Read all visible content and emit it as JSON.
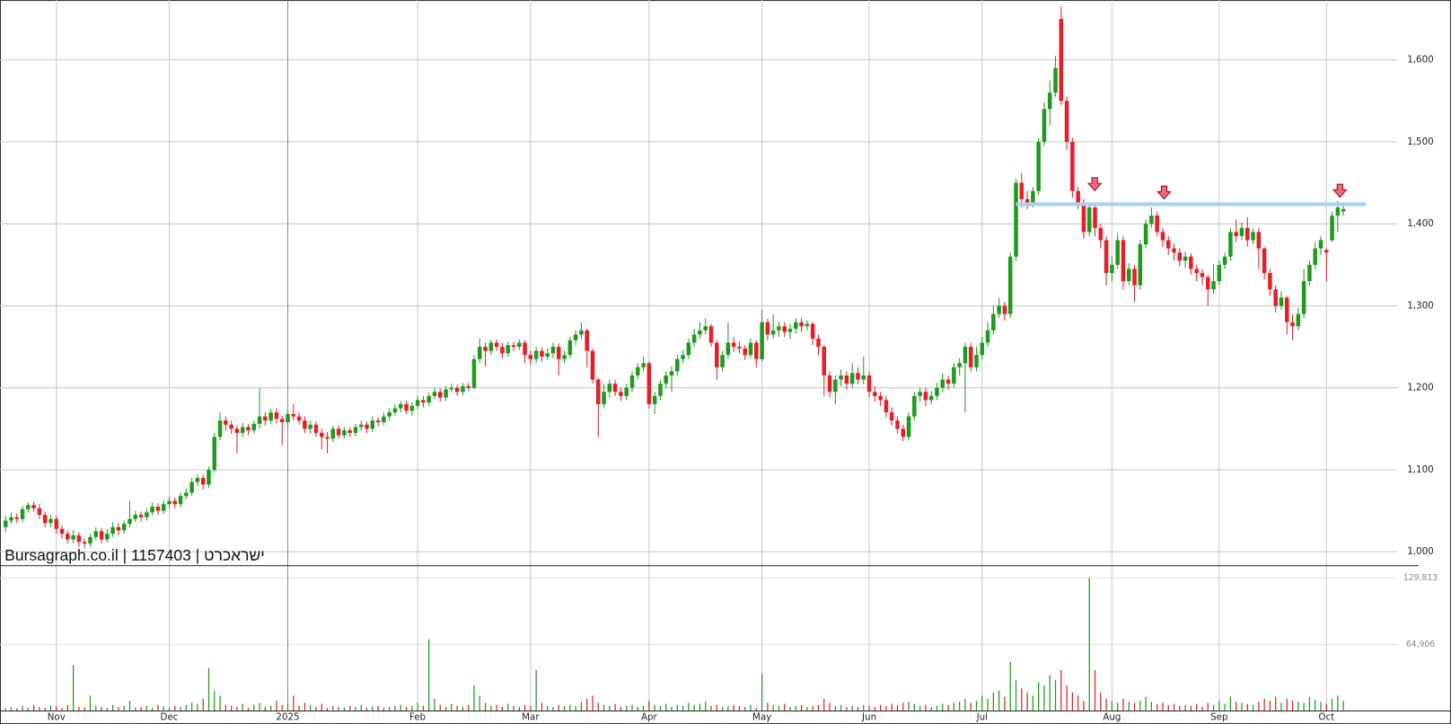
{
  "chart_data": {
    "type": "candlestick",
    "watermark": "Bursagraph.co.il | 1157403 | ישראכרט",
    "up_color": "#1f9a1f",
    "down_color": "#e61e28",
    "grid": true,
    "resistance_line": 1424,
    "resistance_color": "#a8d0f0",
    "ylim": [
      983,
      1673
    ],
    "yticks": [
      {
        "value": 1000,
        "label": "1,000"
      },
      {
        "value": 1100,
        "label": "1,100"
      },
      {
        "value": 1200,
        "label": "1,200"
      },
      {
        "value": 1300,
        "label": "1,300"
      },
      {
        "value": 1400,
        "label": "1,400"
      },
      {
        "value": 1500,
        "label": "1,500"
      },
      {
        "value": 1600,
        "label": "1,600"
      }
    ],
    "volume_ylim": [
      0,
      141000
    ],
    "volume_ticks": [
      {
        "value": 64906,
        "label": "64,906"
      },
      {
        "value": 129813,
        "label": "129,813"
      }
    ],
    "categories": [
      null,
      null,
      null,
      null,
      null,
      null,
      null,
      null,
      null,
      "Nov",
      null,
      null,
      null,
      null,
      null,
      null,
      null,
      null,
      null,
      null,
      null,
      null,
      null,
      null,
      null,
      null,
      null,
      null,
      null,
      "Dec",
      null,
      null,
      null,
      null,
      null,
      null,
      null,
      null,
      null,
      null,
      null,
      null,
      null,
      null,
      null,
      null,
      null,
      null,
      null,
      null,
      "2025",
      null,
      null,
      null,
      null,
      null,
      null,
      null,
      null,
      null,
      null,
      null,
      null,
      null,
      null,
      null,
      null,
      null,
      null,
      null,
      null,
      null,
      null,
      "Feb",
      null,
      null,
      null,
      null,
      null,
      null,
      null,
      null,
      null,
      null,
      null,
      null,
      null,
      null,
      null,
      null,
      null,
      null,
      null,
      "Mar",
      null,
      null,
      null,
      null,
      null,
      null,
      null,
      null,
      null,
      null,
      null,
      null,
      null,
      null,
      null,
      null,
      null,
      null,
      null,
      null,
      "Apr",
      null,
      null,
      null,
      null,
      null,
      null,
      null,
      null,
      null,
      null,
      null,
      null,
      null,
      null,
      null,
      null,
      null,
      null,
      null,
      "May",
      null,
      null,
      null,
      null,
      null,
      null,
      null,
      null,
      null,
      null,
      null,
      null,
      null,
      null,
      null,
      null,
      null,
      null,
      "Jun",
      null,
      null,
      null,
      null,
      null,
      null,
      null,
      null,
      null,
      null,
      null,
      null,
      null,
      null,
      null,
      null,
      null,
      null,
      null,
      "Jul",
      null,
      null,
      null,
      null,
      null,
      null,
      null,
      null,
      null,
      null,
      null,
      null,
      null,
      null,
      null,
      null,
      null,
      null,
      null,
      null,
      null,
      null,
      "Aug",
      null,
      null,
      null,
      null,
      null,
      null,
      null,
      null,
      null,
      null,
      null,
      null,
      null,
      null,
      null,
      null,
      null,
      null,
      "Sep",
      null,
      null,
      null,
      null,
      null,
      null,
      null,
      null,
      null,
      null,
      null,
      null,
      null,
      null,
      null,
      null,
      null,
      null,
      "Oct",
      null,
      null,
      null
    ],
    "open": [
      1030,
      1038,
      1042,
      1040,
      1052,
      1057,
      1053,
      1045,
      1035,
      1040,
      1028,
      1022,
      1015,
      1020,
      1012,
      1010,
      1018,
      1025,
      1015,
      1022,
      1030,
      1026,
      1034,
      1040,
      1045,
      1042,
      1048,
      1055,
      1050,
      1058,
      1062,
      1058,
      1068,
      1072,
      1085,
      1090,
      1082,
      1100,
      1140,
      1160,
      1155,
      1150,
      1145,
      1152,
      1148,
      1156,
      1165,
      1160,
      1170,
      1162,
      1158,
      1168,
      1165,
      1160,
      1150,
      1155,
      1145,
      1140,
      1138,
      1150,
      1142,
      1148,
      1145,
      1152,
      1155,
      1150,
      1160,
      1158,
      1165,
      1170,
      1175,
      1180,
      1172,
      1178,
      1185,
      1182,
      1190,
      1195,
      1188,
      1198,
      1200,
      1195,
      1202,
      1200,
      1235,
      1250,
      1245,
      1255,
      1250,
      1242,
      1252,
      1250,
      1255,
      1240,
      1235,
      1245,
      1238,
      1242,
      1250,
      1235,
      1240,
      1258,
      1265,
      1270,
      1245,
      1210,
      1180,
      1195,
      1205,
      1195,
      1190,
      1200,
      1215,
      1225,
      1230,
      1180,
      1190,
      1205,
      1215,
      1220,
      1235,
      1240,
      1255,
      1265,
      1270,
      1275,
      1255,
      1225,
      1240,
      1255,
      1250,
      1248,
      1240,
      1255,
      1235,
      1280,
      1265,
      1270,
      1275,
      1268,
      1272,
      1280,
      1275,
      1278,
      1260,
      1250,
      1215,
      1195,
      1210,
      1215,
      1205,
      1218,
      1210,
      1215,
      1195,
      1190,
      1185,
      1170,
      1160,
      1150,
      1140,
      1165,
      1190,
      1195,
      1185,
      1190,
      1200,
      1210,
      1205,
      1225,
      1230,
      1250,
      1225,
      1240,
      1255,
      1270,
      1290,
      1300,
      1290,
      1360,
      1450,
      1430,
      1425,
      1440,
      1500,
      1540,
      1560,
      1650,
      1550,
      1500,
      1440,
      1425,
      1390,
      1420,
      1395,
      1380,
      1340,
      1350,
      1380,
      1330,
      1345,
      1325,
      1375,
      1400,
      1410,
      1390,
      1380,
      1370,
      1365,
      1355,
      1360,
      1345,
      1340,
      1335,
      1320,
      1330,
      1350,
      1360,
      1390,
      1385,
      1395,
      1380,
      1390,
      1370,
      1340,
      1320,
      1300,
      1310,
      1280,
      1275,
      1290,
      1330,
      1350,
      1370,
      1368,
      1380,
      1410,
      1415
    ],
    "high": [
      1044,
      1048,
      1047,
      1056,
      1060,
      1061,
      1058,
      1049,
      1045,
      1044,
      1032,
      1026,
      1026,
      1024,
      1016,
      1022,
      1030,
      1029,
      1028,
      1036,
      1035,
      1038,
      1062,
      1050,
      1049,
      1053,
      1060,
      1059,
      1063,
      1067,
      1066,
      1072,
      1077,
      1090,
      1094,
      1094,
      1104,
      1145,
      1170,
      1165,
      1160,
      1154,
      1157,
      1156,
      1160,
      1200,
      1170,
      1174,
      1175,
      1166,
      1172,
      1180,
      1170,
      1165,
      1160,
      1159,
      1150,
      1146,
      1154,
      1154,
      1152,
      1152,
      1156,
      1160,
      1159,
      1165,
      1164,
      1170,
      1175,
      1180,
      1184,
      1184,
      1182,
      1190,
      1190,
      1194,
      1200,
      1199,
      1202,
      1205,
      1204,
      1206,
      1206,
      1240,
      1260,
      1255,
      1258,
      1259,
      1255,
      1256,
      1256,
      1259,
      1258,
      1245,
      1250,
      1249,
      1248,
      1255,
      1254,
      1246,
      1262,
      1270,
      1280,
      1272,
      1248,
      1212,
      1205,
      1210,
      1210,
      1200,
      1205,
      1220,
      1230,
      1238,
      1232,
      1195,
      1210,
      1220,
      1226,
      1240,
      1246,
      1260,
      1272,
      1280,
      1285,
      1278,
      1258,
      1245,
      1280,
      1262,
      1256,
      1252,
      1260,
      1258,
      1295,
      1284,
      1290,
      1280,
      1280,
      1278,
      1285,
      1285,
      1282,
      1280,
      1265,
      1252,
      1220,
      1215,
      1222,
      1220,
      1230,
      1225,
      1238,
      1220,
      1202,
      1195,
      1190,
      1176,
      1165,
      1155,
      1170,
      1195,
      1200,
      1200,
      1196,
      1206,
      1218,
      1215,
      1230,
      1236,
      1255,
      1255,
      1250,
      1262,
      1280,
      1300,
      1310,
      1305,
      1365,
      1455,
      1462,
      1440,
      1445,
      1505,
      1548,
      1575,
      1605,
      1665,
      1555,
      1505,
      1445,
      1430,
      1425,
      1425,
      1400,
      1385,
      1360,
      1388,
      1385,
      1352,
      1350,
      1380,
      1405,
      1420,
      1415,
      1395,
      1385,
      1376,
      1370,
      1366,
      1364,
      1350,
      1345,
      1338,
      1350,
      1355,
      1365,
      1395,
      1405,
      1402,
      1408,
      1395,
      1395,
      1372,
      1345,
      1325,
      1318,
      1312,
      1290,
      1298,
      1345,
      1355,
      1378,
      1385,
      1370,
      1415,
      1428,
      1424
    ],
    "low": [
      1024,
      1034,
      1035,
      1036,
      1048,
      1049,
      1040,
      1030,
      1030,
      1022,
      1016,
      1010,
      1010,
      1006,
      1004,
      1006,
      1014,
      1010,
      1011,
      1018,
      1020,
      1022,
      1030,
      1036,
      1037,
      1038,
      1044,
      1045,
      1046,
      1053,
      1053,
      1054,
      1064,
      1068,
      1080,
      1076,
      1078,
      1096,
      1136,
      1148,
      1144,
      1120,
      1140,
      1142,
      1144,
      1150,
      1154,
      1156,
      1156,
      1130,
      1152,
      1160,
      1155,
      1145,
      1144,
      1140,
      1125,
      1120,
      1134,
      1138,
      1138,
      1140,
      1141,
      1148,
      1145,
      1146,
      1153,
      1154,
      1160,
      1166,
      1170,
      1168,
      1166,
      1174,
      1176,
      1178,
      1186,
      1183,
      1184,
      1194,
      1190,
      1191,
      1196,
      1198,
      1230,
      1226,
      1240,
      1245,
      1236,
      1238,
      1245,
      1246,
      1230,
      1228,
      1230,
      1232,
      1234,
      1236,
      1215,
      1230,
      1236,
      1252,
      1260,
      1225,
      1205,
      1140,
      1175,
      1188,
      1190,
      1184,
      1185,
      1195,
      1210,
      1220,
      1175,
      1168,
      1185,
      1200,
      1195,
      1215,
      1230,
      1235,
      1250,
      1260,
      1265,
      1250,
      1210,
      1220,
      1235,
      1244,
      1242,
      1234,
      1236,
      1225,
      1232,
      1258,
      1260,
      1262,
      1262,
      1260,
      1266,
      1268,
      1270,
      1252,
      1240,
      1190,
      1188,
      1180,
      1202,
      1198,
      1200,
      1204,
      1204,
      1188,
      1183,
      1178,
      1164,
      1154,
      1144,
      1135,
      1136,
      1160,
      1183,
      1178,
      1180,
      1185,
      1195,
      1198,
      1200,
      1215,
      1170,
      1220,
      1220,
      1235,
      1250,
      1265,
      1285,
      1282,
      1285,
      1355,
      1420,
      1418,
      1420,
      1435,
      1495,
      1520,
      1555,
      1545,
      1490,
      1432,
      1418,
      1382,
      1385,
      1385,
      1370,
      1325,
      1330,
      1345,
      1320,
      1325,
      1305,
      1320,
      1370,
      1395,
      1385,
      1372,
      1362,
      1355,
      1348,
      1346,
      1338,
      1330,
      1325,
      1300,
      1315,
      1325,
      1345,
      1355,
      1378,
      1380,
      1372,
      1375,
      1345,
      1332,
      1312,
      1292,
      1295,
      1265,
      1258,
      1270,
      1285,
      1325,
      1345,
      1362,
      1330,
      1378,
      1390,
      1410
    ],
    "close": [
      1038,
      1042,
      1040,
      1052,
      1057,
      1053,
      1045,
      1035,
      1040,
      1028,
      1022,
      1015,
      1020,
      1012,
      1010,
      1018,
      1025,
      1015,
      1022,
      1030,
      1026,
      1034,
      1040,
      1045,
      1042,
      1048,
      1055,
      1050,
      1058,
      1062,
      1058,
      1068,
      1072,
      1085,
      1090,
      1082,
      1100,
      1140,
      1160,
      1155,
      1150,
      1145,
      1152,
      1148,
      1156,
      1165,
      1160,
      1170,
      1162,
      1158,
      1168,
      1165,
      1160,
      1150,
      1155,
      1145,
      1140,
      1138,
      1150,
      1142,
      1148,
      1145,
      1152,
      1155,
      1150,
      1160,
      1158,
      1165,
      1170,
      1175,
      1180,
      1172,
      1178,
      1185,
      1182,
      1190,
      1195,
      1188,
      1198,
      1200,
      1195,
      1202,
      1200,
      1235,
      1250,
      1245,
      1255,
      1250,
      1242,
      1252,
      1250,
      1255,
      1240,
      1235,
      1245,
      1238,
      1242,
      1250,
      1235,
      1240,
      1258,
      1265,
      1270,
      1245,
      1210,
      1180,
      1195,
      1205,
      1195,
      1190,
      1200,
      1215,
      1225,
      1230,
      1180,
      1190,
      1205,
      1215,
      1220,
      1235,
      1240,
      1255,
      1265,
      1270,
      1275,
      1255,
      1225,
      1240,
      1255,
      1250,
      1248,
      1240,
      1255,
      1235,
      1280,
      1265,
      1270,
      1275,
      1268,
      1272,
      1280,
      1275,
      1278,
      1260,
      1250,
      1215,
      1195,
      1210,
      1215,
      1205,
      1218,
      1210,
      1215,
      1195,
      1190,
      1185,
      1170,
      1160,
      1150,
      1140,
      1165,
      1190,
      1195,
      1185,
      1190,
      1200,
      1210,
      1205,
      1225,
      1230,
      1250,
      1225,
      1240,
      1255,
      1270,
      1290,
      1300,
      1290,
      1360,
      1450,
      1430,
      1425,
      1440,
      1500,
      1540,
      1560,
      1590,
      1550,
      1500,
      1440,
      1425,
      1390,
      1420,
      1395,
      1380,
      1340,
      1350,
      1380,
      1330,
      1345,
      1325,
      1375,
      1400,
      1410,
      1390,
      1380,
      1370,
      1365,
      1355,
      1360,
      1345,
      1340,
      1335,
      1320,
      1330,
      1350,
      1360,
      1390,
      1385,
      1395,
      1380,
      1390,
      1370,
      1340,
      1320,
      1300,
      1310,
      1280,
      1275,
      1290,
      1330,
      1350,
      1370,
      1380,
      1365,
      1410,
      1420,
      1418
    ],
    "volume": [
      3000,
      4000,
      2500,
      5000,
      3500,
      6000,
      4000,
      3000,
      5500,
      4500,
      3000,
      6000,
      45000,
      4000,
      3500,
      15000,
      5000,
      4000,
      3000,
      6000,
      4000,
      5000,
      10000,
      3500,
      4000,
      5000,
      3000,
      6000,
      4500,
      3500,
      5000,
      4000,
      6000,
      8000,
      7000,
      12000,
      42000,
      20000,
      15000,
      6000,
      5000,
      4000,
      7000,
      3000,
      6000,
      8000,
      4000,
      5000,
      10000,
      6000,
      7000,
      15000,
      5000,
      8000,
      6000,
      4000,
      7000,
      3000,
      5000,
      4000,
      3500,
      5000,
      4000,
      6000,
      3000,
      4500,
      5000,
      3000,
      4000,
      5000,
      6000,
      4000,
      5000,
      8000,
      5000,
      70000,
      12000,
      6000,
      4000,
      7000,
      5000,
      4000,
      6000,
      25000,
      15000,
      8000,
      5000,
      6000,
      4000,
      7000,
      5000,
      4000,
      6000,
      5000,
      40000,
      8000,
      5000,
      4000,
      6000,
      5000,
      6000,
      5000,
      9000,
      12000,
      15000,
      8000,
      6000,
      5000,
      7000,
      4000,
      5000,
      6000,
      4000,
      5000,
      10000,
      6000,
      5000,
      7000,
      4000,
      6000,
      5000,
      8000,
      6000,
      7000,
      9000,
      5000,
      6000,
      4000,
      5000,
      6000,
      5000,
      4000,
      6000,
      3000,
      37000,
      8000,
      6000,
      5000,
      7000,
      4000,
      5000,
      6000,
      4000,
      5000,
      6000,
      12000,
      8000,
      5000,
      6000,
      4000,
      5000,
      4000,
      6000,
      5000,
      4000,
      6000,
      5000,
      7000,
      6000,
      8000,
      9000,
      7000,
      5000,
      6000,
      4000,
      5000,
      7000,
      6000,
      8000,
      9000,
      12000,
      8000,
      10000,
      15000,
      12000,
      18000,
      20000,
      14000,
      48000,
      30000,
      22000,
      18000,
      15000,
      28000,
      25000,
      35000,
      30000,
      40000,
      25000,
      18000,
      15000,
      10000,
      130000,
      40000,
      18000,
      12000,
      10000,
      8000,
      12000,
      9000,
      8000,
      10000,
      14000,
      9000,
      7000,
      8000,
      6000,
      7000,
      5000,
      6000,
      5000,
      7000,
      4000,
      8000,
      6000,
      10000,
      7000,
      14000,
      9000,
      8000,
      7000,
      6000,
      9000,
      12000,
      10000,
      14000,
      8000,
      12000,
      10000,
      9000,
      8000,
      14000,
      11000,
      9000,
      7000,
      12000,
      15000,
      10000
    ]
  }
}
